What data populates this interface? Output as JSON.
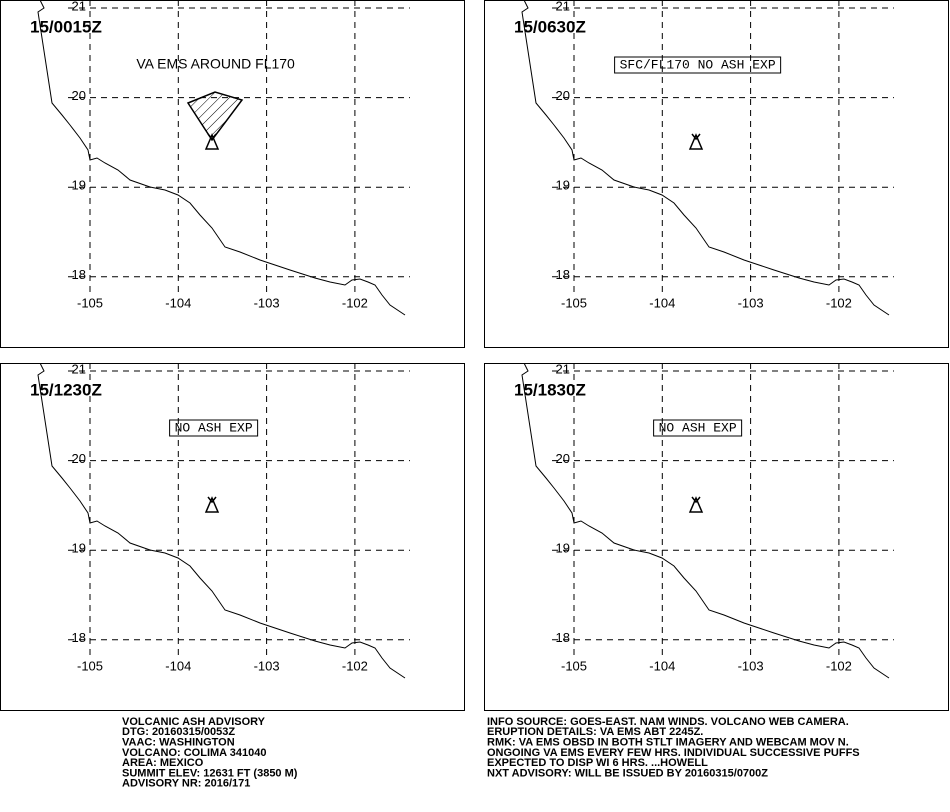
{
  "panels": [
    {
      "time": "15/0015Z",
      "annotation": "VA EMS AROUND FL170",
      "boxed": false,
      "ash": true
    },
    {
      "time": "15/0630Z",
      "annotation": "SFC/FL170 NO ASH EXP",
      "boxed": true,
      "ash": false
    },
    {
      "time": "15/1230Z",
      "annotation": "NO ASH EXP",
      "boxed": true,
      "ash": false
    },
    {
      "time": "15/1830Z",
      "annotation": "NO ASH EXP",
      "boxed": true,
      "ash": false
    }
  ],
  "map": {
    "lon_ticks": [
      -105,
      -104,
      -103,
      -102
    ],
    "lat_ticks": [
      21,
      20,
      19,
      18
    ]
  },
  "advisory": {
    "left": [
      "VOLCANIC ASH ADVISORY",
      "DTG: 20160315/0053Z",
      "VAAC: WASHINGTON",
      "VOLCANO: COLIMA 341040",
      "AREA: MEXICO",
      "SUMMIT ELEV: 12631 FT (3850 M)",
      "ADVISORY NR: 2016/171"
    ],
    "right": [
      "INFO SOURCE: GOES-EAST. NAM WINDS. VOLCANO WEB CAMERA.",
      "ERUPTION DETAILS: VA EMS ABT 2245Z.",
      "RMK: VA EMS OBSD IN BOTH STLT IMAGERY AND WEBCAM MOV N.",
      "ONGOING VA EMS EVERY FEW HRS. INDIVIDUAL SUCCESSIVE PUFFS",
      "EXPECTED TO DISP WI 6 HRS. ...HOWELL",
      "NXT ADVISORY: WILL BE ISSUED BY 20160315/0700Z"
    ]
  }
}
